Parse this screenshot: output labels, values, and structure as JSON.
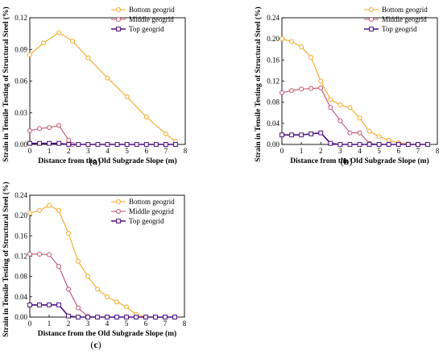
{
  "figure": {
    "panels": [
      {
        "id": "a",
        "caption_open": "(",
        "caption_letter": "a",
        "caption_close": ")"
      },
      {
        "id": "b",
        "caption_open": "(",
        "caption_letter": "b",
        "caption_close": ")"
      },
      {
        "id": "c",
        "caption_open": "(",
        "caption_letter": "c",
        "caption_close": ")"
      }
    ]
  },
  "colors": {
    "bottom": "#F5A623",
    "middle": "#C0506A",
    "top": "#4B0D82"
  },
  "chart_data": [
    {
      "type": "line",
      "title": "",
      "xlabel": "Distance from the Old Subgrade Slope (m)",
      "ylabel": "Strain in Tensile Testing of Structural Steel (%)",
      "xlim": [
        0,
        8
      ],
      "ylim": [
        0,
        0.12
      ],
      "xticks": [
        "0",
        "1",
        "2",
        "3",
        "4",
        "5",
        "6",
        "7",
        "8"
      ],
      "yticks": [
        "0.00",
        "0.03",
        "0.06",
        "0.09",
        "0.12"
      ],
      "grid": false,
      "legend_position": "top-right",
      "series": [
        {
          "name": "Bottom  geogrid",
          "color": "#F5A623",
          "marker": "circle",
          "x": [
            0,
            0.7,
            1.5,
            2.2,
            3,
            4,
            5,
            6,
            7,
            7.5
          ],
          "y": [
            0.085,
            0.096,
            0.106,
            0.098,
            0.082,
            0.063,
            0.045,
            0.026,
            0.01,
            0.003
          ]
        },
        {
          "name": "Middle geogrid",
          "color": "#C0506A",
          "marker": "circle",
          "x": [
            0,
            0.5,
            1,
            1.5,
            2,
            2.2,
            3,
            4,
            5,
            6,
            7,
            7.5
          ],
          "y": [
            0.013,
            0.015,
            0.016,
            0.018,
            0.004,
            0.0,
            0.0,
            0.0,
            0.0,
            0.0,
            0.0,
            0.0
          ]
        },
        {
          "name": "Top  geogrid",
          "color": "#4B0D82",
          "marker": "square",
          "x": [
            0,
            0.5,
            1,
            1.5,
            2,
            2.5,
            3,
            3.5,
            4,
            4.5,
            5,
            5.5,
            6,
            6.5,
            7,
            7.5
          ],
          "y": [
            0.001,
            0.001,
            0.001,
            0.001,
            0.0,
            0.0,
            0.0,
            0.0,
            0.0,
            0.0,
            0.0,
            0.0,
            0.0,
            0.0,
            0.0,
            0.0
          ]
        }
      ]
    },
    {
      "type": "line",
      "title": "",
      "xlabel": "Distance from the Old Subgrade Slope (m)",
      "ylabel": "Strain in Tensile Testing of Structural Steel (%)",
      "xlim": [
        0,
        8
      ],
      "ylim": [
        0,
        0.24
      ],
      "xticks": [
        "0",
        "1",
        "2",
        "3",
        "4",
        "5",
        "6",
        "7",
        "8"
      ],
      "yticks": [
        "0.00",
        "0.04",
        "0.08",
        "0.12",
        "0.16",
        "0.20",
        "0.24"
      ],
      "grid": false,
      "legend_position": "top-right",
      "series": [
        {
          "name": "Bottom  geogrid",
          "color": "#F5A623",
          "marker": "circle",
          "x": [
            0,
            0.5,
            1,
            1.5,
            2,
            2.5,
            3,
            3.5,
            4,
            4.5,
            5,
            5.5,
            6,
            6.5,
            7,
            7.5
          ],
          "y": [
            0.2,
            0.195,
            0.185,
            0.165,
            0.12,
            0.085,
            0.075,
            0.07,
            0.05,
            0.025,
            0.015,
            0.008,
            0.003,
            0.001,
            0.0,
            0.0
          ]
        },
        {
          "name": "Middle geogrid",
          "color": "#C0506A",
          "marker": "circle",
          "x": [
            0,
            0.5,
            1,
            1.5,
            2,
            2.5,
            3,
            3.5,
            4,
            4.5,
            5,
            5.5,
            6,
            6.5,
            7,
            7.5
          ],
          "y": [
            0.098,
            0.102,
            0.105,
            0.106,
            0.107,
            0.07,
            0.045,
            0.022,
            0.022,
            0.002,
            0.0,
            0.0,
            0.0,
            0.0,
            0.0,
            0.0
          ]
        },
        {
          "name": "Top  geogrid",
          "color": "#4B0D82",
          "marker": "square",
          "x": [
            0,
            0.5,
            1,
            1.5,
            2,
            2.5,
            3,
            3.5,
            4,
            4.5,
            5,
            5.5,
            6,
            6.5,
            7,
            7.5
          ],
          "y": [
            0.018,
            0.018,
            0.018,
            0.02,
            0.022,
            0.002,
            0.0,
            0.0,
            0.0,
            0.0,
            0.0,
            0.0,
            0.0,
            0.0,
            0.0,
            0.0
          ]
        }
      ]
    },
    {
      "type": "line",
      "title": "",
      "xlabel": "Distance from the Old Subgrade Slope (m)",
      "ylabel": "Strain in Tensile Testing of Structural Steel (%)",
      "xlim": [
        0,
        8
      ],
      "ylim": [
        0,
        0.24
      ],
      "xticks": [
        "0",
        "1",
        "2",
        "3",
        "4",
        "5",
        "6",
        "7",
        "8"
      ],
      "yticks": [
        "0.00",
        "0.04",
        "0.08",
        "0.12",
        "0.16",
        "0.20",
        "0.24"
      ],
      "grid": false,
      "legend_position": "top-right",
      "series": [
        {
          "name": "Bottom  geogrid",
          "color": "#F5A623",
          "marker": "circle",
          "x": [
            0,
            0.5,
            1,
            1.5,
            2,
            2.5,
            3,
            3.5,
            4,
            4.5,
            5,
            5.5,
            6,
            6.5,
            7,
            7.5
          ],
          "y": [
            0.205,
            0.21,
            0.22,
            0.21,
            0.165,
            0.11,
            0.08,
            0.055,
            0.04,
            0.03,
            0.02,
            0.005,
            0.0,
            0.0,
            0.0,
            0.0
          ]
        },
        {
          "name": "Middle geogrid",
          "color": "#C0506A",
          "marker": "circle",
          "x": [
            0,
            0.5,
            1,
            1.5,
            2,
            2.5,
            3,
            3.5,
            4,
            4.5,
            5,
            5.5,
            6,
            6.5,
            7,
            7.5
          ],
          "y": [
            0.124,
            0.124,
            0.123,
            0.1,
            0.055,
            0.018,
            0.001,
            0.0,
            0.0,
            0.0,
            0.0,
            0.0,
            0.0,
            0.0,
            0.0,
            0.0
          ]
        },
        {
          "name": "Top  geogrid",
          "color": "#4B0D82",
          "marker": "square",
          "x": [
            0,
            0.5,
            1,
            1.5,
            2,
            2.5,
            3,
            3.5,
            4,
            4.5,
            5,
            5.5,
            6,
            6.5,
            7,
            7.5
          ],
          "y": [
            0.024,
            0.024,
            0.024,
            0.024,
            0.002,
            0.0,
            0.0,
            0.0,
            0.0,
            0.0,
            0.0,
            0.0,
            0.0,
            0.0,
            0.0,
            0.0
          ]
        }
      ]
    }
  ]
}
